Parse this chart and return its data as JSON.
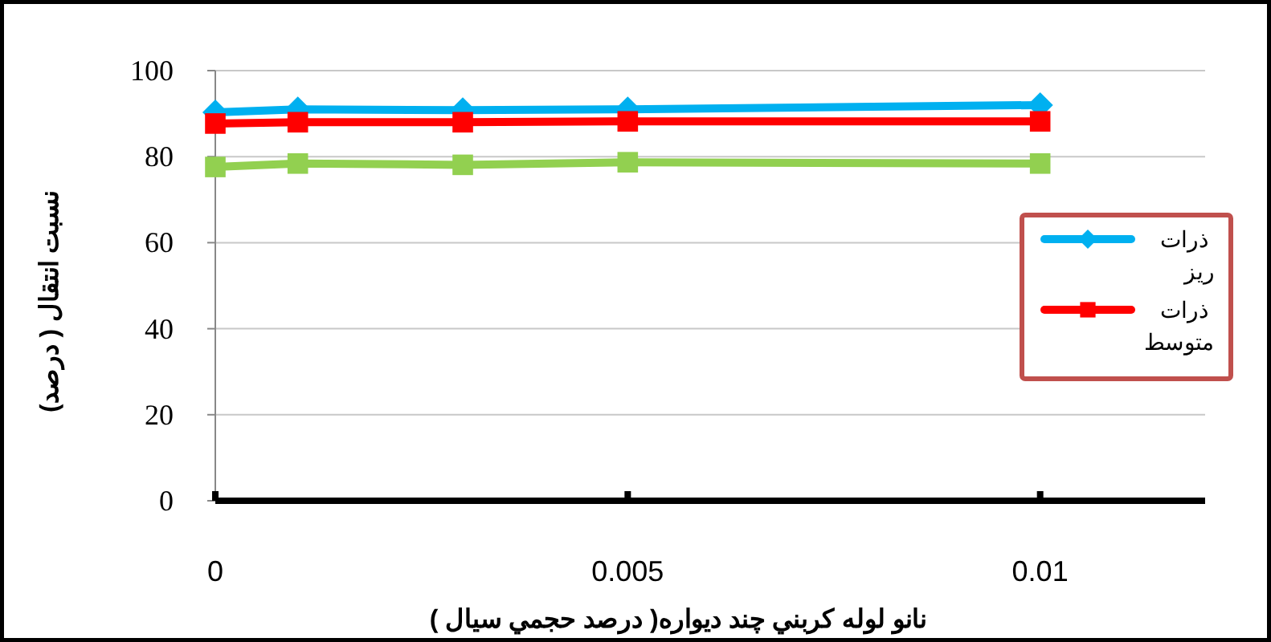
{
  "chart_data": {
    "type": "line",
    "xlabel": "نانو لوله كربني چند ديواره( درصد حجمي سيال )",
    "ylabel": "نسبت انتقال ( درصد)",
    "x": [
      0,
      0.001,
      0.003,
      0.005,
      0.01
    ],
    "series": [
      {
        "name": "ذرات ریز",
        "color": "#00b0f0",
        "marker": "diamond",
        "values": [
          90.3,
          91,
          90.8,
          91,
          92
        ]
      },
      {
        "name": "ذرات متوسط",
        "color": "#ff0000",
        "marker": "square",
        "values": [
          87.7,
          88,
          88,
          88.2,
          88.2
        ]
      },
      {
        "color": "#92d050",
        "marker": "square",
        "values": [
          77.6,
          78.4,
          78.1,
          78.7,
          78.4
        ]
      }
    ],
    "xlim": [
      0,
      0.012
    ],
    "xticks": [
      0,
      0.005,
      0.01
    ],
    "ylim": [
      0,
      100
    ],
    "yticks": [
      0,
      20,
      40,
      60,
      80,
      100
    ],
    "grid": "y",
    "legend": "right",
    "line_style": "solid"
  }
}
